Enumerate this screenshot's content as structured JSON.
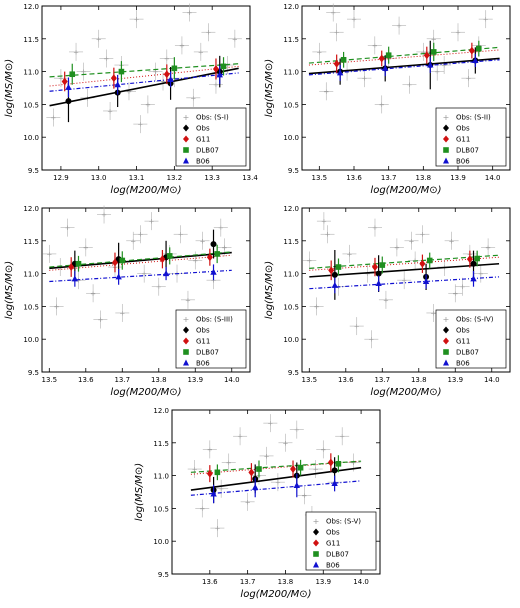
{
  "legend_labels": {
    "obs_scatter": "Obs: (S-I)",
    "obs": "Obs",
    "g11": "G11",
    "dlb07": "DLB07",
    "b06": "B06"
  },
  "colors": {
    "obs": "#000000",
    "g11": "#d01010",
    "dlb07": "#1f8f1f",
    "b06": "#1010d0",
    "scatter": "#b0b0b0"
  },
  "chart_data": [
    {
      "type": "scatter",
      "panel": "S-I",
      "xlabel": "log(M200/M⊙)",
      "ylabel": "log(MS/M⊙)",
      "xlim": [
        12.85,
        13.4
      ],
      "ylim": [
        9.5,
        12.0
      ],
      "xticks": [
        "12.9",
        "13.0",
        "13.1",
        "13.2",
        "13.3",
        "13.4"
      ],
      "yticks": [
        "9.5",
        "10.0",
        "10.5",
        "11.0",
        "11.5",
        "12.0"
      ],
      "legend": "lower-right",
      "legend_labels": [
        "Obs: (S-I)",
        "Obs",
        "G11",
        "DLB07",
        "B06"
      ],
      "fit_lines": [
        {
          "name": "Obs",
          "x": [
            12.87,
            13.37
          ],
          "y": [
            10.48,
            11.05
          ]
        },
        {
          "name": "G11",
          "x": [
            12.87,
            13.37
          ],
          "y": [
            10.78,
            11.08
          ]
        },
        {
          "name": "DLB07",
          "x": [
            12.87,
            13.37
          ],
          "y": [
            10.92,
            11.12
          ]
        },
        {
          "name": "B06",
          "x": [
            12.87,
            13.37
          ],
          "y": [
            10.7,
            10.98
          ]
        }
      ],
      "series": [
        {
          "name": "Obs",
          "x": [
            12.92,
            13.05,
            13.19,
            13.32
          ],
          "y": [
            10.55,
            10.68,
            10.82,
            11.0
          ],
          "err": [
            0.32,
            0.22,
            0.25,
            0.24
          ]
        },
        {
          "name": "G11",
          "x": [
            12.91,
            13.04,
            13.18,
            13.31
          ],
          "y": [
            10.85,
            10.9,
            10.96,
            11.04
          ],
          "err": [
            0.15,
            0.16,
            0.15,
            0.16
          ]
        },
        {
          "name": "DLB07",
          "x": [
            12.93,
            13.06,
            13.2,
            13.33
          ],
          "y": [
            10.96,
            11.0,
            11.05,
            11.08
          ],
          "err": [
            0.16,
            0.16,
            0.17,
            0.14
          ]
        },
        {
          "name": "B06",
          "x": [
            12.92,
            13.05,
            13.19,
            13.32
          ],
          "y": [
            10.76,
            10.8,
            10.88,
            10.95
          ],
          "err": [
            0.15,
            0.15,
            0.12,
            0.14
          ]
        }
      ],
      "scatter": {
        "x": [
          12.88,
          12.9,
          12.94,
          12.97,
          13.0,
          13.03,
          13.06,
          13.08,
          13.1,
          13.13,
          13.15,
          13.18,
          13.2,
          13.22,
          13.25,
          13.27,
          13.29,
          13.31,
          13.34,
          13.36,
          12.96,
          13.11,
          13.24,
          13.02,
          13.17
        ],
        "y": [
          10.3,
          10.9,
          11.3,
          10.6,
          11.5,
          10.4,
          11.1,
          10.7,
          11.8,
          10.5,
          11.0,
          11.2,
          10.9,
          11.4,
          10.6,
          11.3,
          11.6,
          10.8,
          11.1,
          11.5,
          11.0,
          10.2,
          11.9,
          11.2,
          10.85
        ]
      }
    },
    {
      "type": "scatter",
      "panel": "S-II",
      "xlabel": "log(M200/M⊙)",
      "ylabel": "log(MS/M⊙)",
      "xlim": [
        13.45,
        14.05
      ],
      "ylim": [
        9.5,
        12.0
      ],
      "xticks": [
        "13.5",
        "13.6",
        "13.7",
        "13.8",
        "13.9",
        "14.0"
      ],
      "yticks": [
        "9.5",
        "10.0",
        "10.5",
        "11.0",
        "11.5",
        "12.0"
      ],
      "legend": "lower-right",
      "legend_labels": [
        "Obs: (S-II)",
        "Obs",
        "G11",
        "DLB07",
        "B06"
      ],
      "fit_lines": [
        {
          "name": "Obs",
          "x": [
            13.47,
            14.02
          ],
          "y": [
            10.97,
            11.2
          ]
        },
        {
          "name": "G11",
          "x": [
            13.47,
            14.02
          ],
          "y": [
            11.1,
            11.33
          ]
        },
        {
          "name": "DLB07",
          "x": [
            13.47,
            14.02
          ],
          "y": [
            11.13,
            11.37
          ]
        },
        {
          "name": "B06",
          "x": [
            13.47,
            14.02
          ],
          "y": [
            10.95,
            11.18
          ]
        }
      ],
      "series": [
        {
          "name": "Obs",
          "x": [
            13.56,
            13.69,
            13.82,
            13.95
          ],
          "y": [
            11.0,
            11.05,
            11.1,
            11.17
          ],
          "err": [
            0.2,
            0.2,
            0.37,
            0.2
          ]
        },
        {
          "name": "G11",
          "x": [
            13.55,
            13.68,
            13.81,
            13.94
          ],
          "y": [
            11.12,
            11.2,
            11.25,
            11.32
          ],
          "err": [
            0.14,
            0.12,
            0.13,
            0.12
          ]
        },
        {
          "name": "DLB07",
          "x": [
            13.57,
            13.7,
            13.83,
            13.96
          ],
          "y": [
            11.18,
            11.25,
            11.3,
            11.35
          ],
          "err": [
            0.12,
            0.13,
            0.14,
            0.12
          ]
        },
        {
          "name": "B06",
          "x": [
            13.56,
            13.69,
            13.82,
            13.95
          ],
          "y": [
            10.98,
            11.05,
            11.1,
            11.17
          ],
          "err": [
            0.12,
            0.12,
            0.12,
            0.1
          ]
        }
      ],
      "scatter": {
        "x": [
          13.5,
          13.52,
          13.55,
          13.58,
          13.6,
          13.63,
          13.66,
          13.7,
          13.73,
          13.76,
          13.8,
          13.83,
          13.86,
          13.9,
          13.93,
          13.96,
          13.98,
          13.54,
          13.68,
          13.84
        ],
        "y": [
          11.3,
          10.7,
          11.6,
          11.0,
          11.8,
          10.9,
          11.4,
          11.2,
          11.7,
          10.8,
          11.3,
          11.5,
          11.1,
          11.6,
          10.9,
          11.4,
          11.8,
          11.9,
          10.5,
          11.0
        ]
      }
    },
    {
      "type": "scatter",
      "panel": "S-III",
      "xlabel": "log(M200/M⊙)",
      "ylabel": "log(MS/M⊙)",
      "xlim": [
        13.48,
        14.05
      ],
      "ylim": [
        9.5,
        12.0
      ],
      "xticks": [
        "13.5",
        "13.6",
        "13.7",
        "13.8",
        "13.9",
        "14.0"
      ],
      "yticks": [
        "9.5",
        "10.0",
        "10.5",
        "11.0",
        "11.5",
        "12.0"
      ],
      "legend": "lower-right",
      "legend_labels": [
        "Obs: (S-III)",
        "Obs",
        "G11",
        "DLB07",
        "B06"
      ],
      "fit_lines": [
        {
          "name": "Obs",
          "x": [
            13.5,
            14.0
          ],
          "y": [
            11.08,
            11.32
          ]
        },
        {
          "name": "G11",
          "x": [
            13.5,
            14.0
          ],
          "y": [
            11.05,
            11.28
          ]
        },
        {
          "name": "DLB07",
          "x": [
            13.5,
            14.0
          ],
          "y": [
            11.1,
            11.33
          ]
        },
        {
          "name": "B06",
          "x": [
            13.5,
            14.0
          ],
          "y": [
            10.88,
            11.05
          ]
        }
      ],
      "series": [
        {
          "name": "Obs",
          "x": [
            13.57,
            13.69,
            13.82,
            13.95
          ],
          "y": [
            11.15,
            11.22,
            11.25,
            11.45
          ],
          "err": [
            0.2,
            0.25,
            0.25,
            0.22
          ]
        },
        {
          "name": "G11",
          "x": [
            13.56,
            13.68,
            13.81,
            13.94
          ],
          "y": [
            11.1,
            11.17,
            11.22,
            11.25
          ],
          "err": [
            0.15,
            0.15,
            0.14,
            0.13
          ]
        },
        {
          "name": "DLB07",
          "x": [
            13.58,
            13.7,
            13.83,
            13.96
          ],
          "y": [
            11.15,
            11.2,
            11.27,
            11.3
          ],
          "err": [
            0.12,
            0.14,
            0.13,
            0.14
          ]
        },
        {
          "name": "B06",
          "x": [
            13.57,
            13.69,
            13.82,
            13.95
          ],
          "y": [
            10.92,
            10.95,
            11.0,
            11.02
          ],
          "err": [
            0.12,
            0.12,
            0.1,
            0.12
          ]
        }
      ],
      "scatter": {
        "x": [
          13.5,
          13.52,
          13.55,
          13.58,
          13.6,
          13.62,
          13.65,
          13.68,
          13.7,
          13.73,
          13.76,
          13.78,
          13.8,
          13.83,
          13.86,
          13.88,
          13.9,
          13.92,
          13.95,
          13.98,
          13.53,
          13.64,
          13.75,
          13.85,
          13.97
        ],
        "y": [
          11.3,
          10.5,
          11.7,
          10.9,
          11.4,
          10.7,
          11.9,
          11.1,
          10.4,
          11.5,
          11.0,
          11.8,
          10.8,
          11.3,
          11.6,
          10.6,
          11.2,
          11.5,
          10.9,
          11.4,
          11.1,
          10.3,
          11.6,
          11.0,
          11.7
        ]
      }
    },
    {
      "type": "scatter",
      "panel": "S-IV",
      "xlabel": "log(M200/M⊙)",
      "ylabel": "log(MS/M⊙)",
      "xlim": [
        13.48,
        14.05
      ],
      "ylim": [
        9.5,
        12.0
      ],
      "xticks": [
        "13.5",
        "13.6",
        "13.7",
        "13.8",
        "13.9",
        "14.0"
      ],
      "yticks": [
        "9.5",
        "10.0",
        "10.5",
        "11.0",
        "11.5",
        "12.0"
      ],
      "legend": "lower-right",
      "legend_labels": [
        "Obs: (S-IV)",
        "Obs",
        "G11",
        "DLB07",
        "B06"
      ],
      "fit_lines": [
        {
          "name": "Obs",
          "x": [
            13.5,
            14.02
          ],
          "y": [
            10.95,
            11.15
          ]
        },
        {
          "name": "G11",
          "x": [
            13.5,
            14.02
          ],
          "y": [
            11.05,
            11.25
          ]
        },
        {
          "name": "DLB07",
          "x": [
            13.5,
            14.02
          ],
          "y": [
            11.08,
            11.28
          ]
        },
        {
          "name": "B06",
          "x": [
            13.5,
            14.02
          ],
          "y": [
            10.77,
            10.95
          ]
        }
      ],
      "series": [
        {
          "name": "Obs",
          "x": [
            13.57,
            13.69,
            13.82,
            13.95
          ],
          "y": [
            10.98,
            11.0,
            10.95,
            11.15
          ],
          "err": [
            0.38,
            0.28,
            0.2,
            0.2
          ]
        },
        {
          "name": "G11",
          "x": [
            13.56,
            13.68,
            13.81,
            13.94
          ],
          "y": [
            11.05,
            11.1,
            11.15,
            11.22
          ],
          "err": [
            0.15,
            0.14,
            0.14,
            0.13
          ]
        },
        {
          "name": "DLB07",
          "x": [
            13.58,
            13.7,
            13.83,
            13.96
          ],
          "y": [
            11.1,
            11.13,
            11.2,
            11.23
          ],
          "err": [
            0.13,
            0.13,
            0.12,
            0.12
          ]
        },
        {
          "name": "B06",
          "x": [
            13.57,
            13.69,
            13.82,
            13.95
          ],
          "y": [
            10.82,
            10.85,
            10.88,
            10.92
          ],
          "err": [
            0.12,
            0.12,
            0.11,
            0.12
          ]
        }
      ],
      "scatter": {
        "x": [
          13.5,
          13.52,
          13.55,
          13.58,
          13.61,
          13.63,
          13.66,
          13.68,
          13.71,
          13.74,
          13.76,
          13.79,
          13.81,
          13.84,
          13.87,
          13.89,
          13.92,
          13.94,
          13.97,
          13.99,
          13.54,
          13.67,
          13.78,
          13.9
        ],
        "y": [
          11.2,
          10.5,
          11.6,
          10.8,
          11.3,
          10.2,
          11.0,
          11.7,
          10.6,
          11.4,
          10.9,
          11.2,
          11.6,
          10.4,
          11.1,
          11.5,
          10.8,
          11.3,
          11.0,
          11.4,
          11.8,
          10.0,
          11.5,
          10.7
        ]
      }
    },
    {
      "type": "scatter",
      "panel": "S-V",
      "xlabel": "log(M200/M⊙)",
      "ylabel": "log(MS/M⊙)",
      "xlim": [
        13.5,
        14.05
      ],
      "ylim": [
        9.5,
        12.0
      ],
      "xticks": [
        "13.6",
        "13.7",
        "13.8",
        "13.9",
        "14.0"
      ],
      "yticks": [
        "9.5",
        "10.0",
        "10.5",
        "11.0",
        "11.5",
        "12.0"
      ],
      "legend": "lower-right",
      "legend_labels": [
        "Obs: (S-V)",
        "Obs",
        "G11",
        "DLB07",
        "B06"
      ],
      "fit_lines": [
        {
          "name": "Obs",
          "x": [
            13.55,
            14.0
          ],
          "y": [
            10.78,
            11.12
          ]
        },
        {
          "name": "G11",
          "x": [
            13.55,
            14.0
          ],
          "y": [
            11.02,
            11.22
          ]
        },
        {
          "name": "DLB07",
          "x": [
            13.55,
            14.0
          ],
          "y": [
            11.05,
            11.22
          ]
        },
        {
          "name": "B06",
          "x": [
            13.55,
            14.0
          ],
          "y": [
            10.7,
            10.92
          ]
        }
      ],
      "series": [
        {
          "name": "Obs",
          "x": [
            13.61,
            13.72,
            13.83,
            13.93
          ],
          "y": [
            10.78,
            10.95,
            11.0,
            11.08
          ],
          "err": [
            0.2,
            0.22,
            0.2,
            0.2
          ]
        },
        {
          "name": "G11",
          "x": [
            13.6,
            13.71,
            13.82,
            13.92
          ],
          "y": [
            11.03,
            11.05,
            11.1,
            11.2
          ],
          "err": [
            0.13,
            0.14,
            0.13,
            0.14
          ]
        },
        {
          "name": "DLB07",
          "x": [
            13.62,
            13.73,
            13.84,
            13.94
          ],
          "y": [
            11.05,
            11.1,
            11.12,
            11.18
          ],
          "err": [
            0.12,
            0.13,
            0.12,
            0.13
          ]
        },
        {
          "name": "B06",
          "x": [
            13.61,
            13.72,
            13.83,
            13.93
          ],
          "y": [
            10.72,
            10.82,
            10.85,
            10.88
          ],
          "err": [
            0.14,
            0.15,
            0.18,
            0.12
          ]
        }
      ],
      "scatter": {
        "x": [
          13.56,
          13.58,
          13.6,
          13.63,
          13.65,
          13.68,
          13.7,
          13.73,
          13.75,
          13.78,
          13.8,
          13.83,
          13.85,
          13.88,
          13.9,
          13.93,
          13.95,
          13.98,
          13.62,
          13.76,
          13.87
        ],
        "y": [
          11.1,
          10.5,
          11.4,
          10.8,
          11.2,
          11.6,
          10.6,
          11.0,
          11.3,
          10.9,
          11.5,
          11.7,
          10.7,
          11.1,
          11.4,
          10.9,
          11.6,
          11.2,
          10.2,
          11.8,
          10.4
        ]
      }
    }
  ]
}
